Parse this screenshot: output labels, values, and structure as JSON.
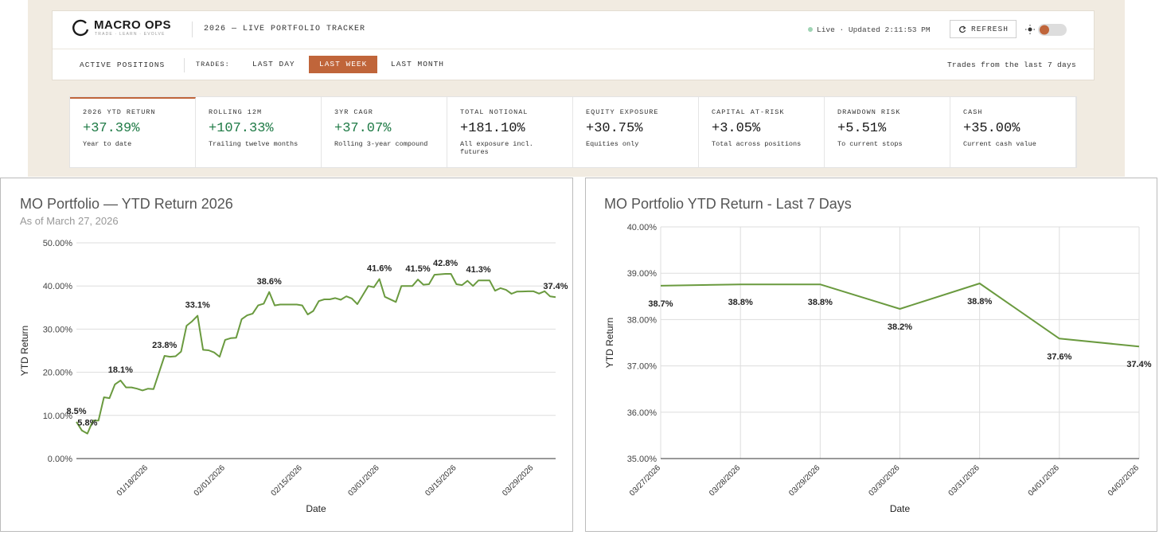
{
  "header": {
    "logo": "MACRO OPS",
    "tagline": "TRADE · LEARN · EVOLVE",
    "title": "2026 — LIVE PORTFOLIO TRACKER",
    "status": "Live · Updated 2:11:53 PM",
    "refresh": "REFRESH"
  },
  "nav": {
    "active_positions": "ACTIVE POSITIONS",
    "trades_label": "TRADES:",
    "tabs": [
      {
        "label": "LAST DAY"
      },
      {
        "label": "LAST WEEK",
        "active": true
      },
      {
        "label": "LAST MONTH"
      }
    ],
    "note": "Trades from the last 7 days"
  },
  "metrics": [
    {
      "label": "2026 YTD RETURN",
      "value": "+37.39%",
      "sub": "Year to date",
      "color": "#1e7a45"
    },
    {
      "label": "ROLLING 12M",
      "value": "+107.33%",
      "sub": "Trailing twelve months",
      "color": "#1e7a45"
    },
    {
      "label": "3YR CAGR",
      "value": "+37.07%",
      "sub": "Rolling 3-year compound",
      "color": "#1e7a45"
    },
    {
      "label": "TOTAL NOTIONAL",
      "value": "+181.10%",
      "sub": "All exposure incl. futures",
      "color": "#1a1a1a"
    },
    {
      "label": "EQUITY EXPOSURE",
      "value": "+30.75%",
      "sub": "Equities only",
      "color": "#1a1a1a"
    },
    {
      "label": "CAPITAL AT-RISK",
      "value": "+3.05%",
      "sub": "Total across positions",
      "color": "#1a1a1a"
    },
    {
      "label": "DRAWDOWN RISK",
      "value": "+5.51%",
      "sub": "To current stops",
      "color": "#1a1a1a"
    },
    {
      "label": "CASH",
      "value": "+35.00%",
      "sub": "Current cash value",
      "color": "#1a1a1a"
    }
  ],
  "chart_data": [
    {
      "type": "line",
      "title": "MO Portfolio — YTD Return 2026",
      "subtitle": "As of March 27, 2026",
      "x_label": "Date",
      "y_label": "YTD Return",
      "color": "#6a9a3f",
      "grid": true,
      "x": [
        "2026-01-05",
        "2026-01-06",
        "2026-01-07",
        "2026-01-08",
        "2026-01-09",
        "2026-01-10",
        "2026-01-11",
        "2026-01-12",
        "2026-01-13",
        "2026-01-14",
        "2026-01-15",
        "2026-01-16",
        "2026-01-17",
        "2026-01-18",
        "2026-01-19",
        "2026-01-21",
        "2026-01-22",
        "2026-01-23",
        "2026-01-24",
        "2026-01-25",
        "2026-01-26",
        "2026-01-27",
        "2026-01-28",
        "2026-01-29",
        "2026-01-30",
        "2026-01-31",
        "2026-02-01",
        "2026-02-02",
        "2026-02-03",
        "2026-02-04",
        "2026-02-05",
        "2026-02-06",
        "2026-02-07",
        "2026-02-08",
        "2026-02-09",
        "2026-02-10",
        "2026-02-11",
        "2026-02-12",
        "2026-02-14",
        "2026-02-15",
        "2026-02-16",
        "2026-02-17",
        "2026-02-18",
        "2026-02-19",
        "2026-02-20",
        "2026-02-21",
        "2026-02-22",
        "2026-02-23",
        "2026-02-24",
        "2026-02-25",
        "2026-02-26",
        "2026-02-27",
        "2026-02-28",
        "2026-03-01",
        "2026-03-02",
        "2026-03-04",
        "2026-03-05",
        "2026-03-07",
        "2026-03-08",
        "2026-03-09",
        "2026-03-10",
        "2026-03-11",
        "2026-03-13",
        "2026-03-14",
        "2026-03-15",
        "2026-03-16",
        "2026-03-17",
        "2026-03-18",
        "2026-03-19",
        "2026-03-21",
        "2026-03-22",
        "2026-03-23",
        "2026-03-24",
        "2026-03-25",
        "2026-03-26",
        "2026-03-27",
        "2026-03-28",
        "2026-03-29",
        "2026-03-30",
        "2026-03-31",
        "2026-04-01",
        "2026-04-02"
      ],
      "values": [
        8.5,
        6.5,
        5.8,
        8.8,
        8.8,
        14.2,
        14.0,
        17.2,
        18.1,
        16.5,
        16.5,
        16.2,
        15.8,
        16.2,
        16.1,
        23.8,
        23.6,
        23.7,
        24.8,
        30.8,
        31.8,
        33.1,
        25.2,
        25.1,
        24.6,
        23.6,
        27.5,
        27.9,
        28.0,
        32.3,
        33.2,
        33.6,
        35.5,
        35.9,
        38.6,
        35.5,
        35.7,
        35.7,
        35.7,
        35.5,
        33.4,
        34.2,
        36.5,
        36.9,
        36.9,
        37.2,
        36.8,
        37.6,
        37.1,
        35.8,
        37.9,
        40.0,
        39.7,
        41.6,
        37.5,
        36.3,
        40.0,
        40.0,
        41.5,
        40.3,
        40.4,
        42.6,
        42.8,
        42.8,
        40.4,
        40.2,
        41.2,
        40.0,
        41.3,
        41.3,
        38.9,
        39.5,
        39.1,
        38.2,
        38.7,
        38.73,
        38.76,
        38.76,
        38.23,
        38.78,
        37.59,
        37.42
      ],
      "value_labels": [
        "8.5%",
        null,
        "5.8%",
        null,
        null,
        null,
        null,
        null,
        "18.1%",
        null,
        null,
        null,
        null,
        null,
        null,
        "23.8%",
        null,
        null,
        null,
        null,
        null,
        "33.1%",
        null,
        null,
        null,
        null,
        null,
        null,
        null,
        null,
        null,
        null,
        null,
        null,
        "38.6%",
        null,
        null,
        null,
        null,
        null,
        null,
        null,
        null,
        null,
        null,
        null,
        null,
        null,
        null,
        null,
        null,
        null,
        null,
        "41.6%",
        null,
        null,
        null,
        null,
        "41.5%",
        null,
        null,
        null,
        "42.8%",
        null,
        null,
        null,
        null,
        null,
        "41.3%",
        null,
        null,
        null,
        null,
        null,
        null,
        null,
        null,
        null,
        null,
        null,
        null,
        "37.4%"
      ],
      "xlim": [
        "2026-01-05",
        "2026-04-02"
      ],
      "xticks": [
        {
          "value": "2026-01-18",
          "label": "01/18/2026"
        },
        {
          "value": "2026-02-01",
          "label": "02/01/2026"
        },
        {
          "value": "2026-02-15",
          "label": "02/15/2026"
        },
        {
          "value": "2026-03-01",
          "label": "03/01/2026"
        },
        {
          "value": "2026-03-15",
          "label": "03/15/2026"
        },
        {
          "value": "2026-03-29",
          "label": "03/29/2026"
        }
      ],
      "ylim": [
        0,
        50
      ],
      "yticks": [
        {
          "value": 0,
          "label": "0.00%"
        },
        {
          "value": 10,
          "label": "10.00%"
        },
        {
          "value": 20,
          "label": "20.00%"
        },
        {
          "value": 30,
          "label": "30.00%"
        },
        {
          "value": 40,
          "label": "40.00%"
        },
        {
          "value": 50,
          "label": "50.00%"
        }
      ]
    },
    {
      "type": "line",
      "title": "MO Portfolio YTD Return - Last 7 Days",
      "x_label": "Date",
      "y_label": "YTD Return",
      "color": "#6a9a3f",
      "grid": true,
      "categories": [
        "03/27/2026",
        "03/28/2026",
        "03/29/2026",
        "03/30/2026",
        "03/31/2026",
        "04/01/2026",
        "04/02/2026"
      ],
      "values": [
        38.73,
        38.76,
        38.76,
        38.23,
        38.78,
        37.59,
        37.42
      ],
      "value_labels": [
        "38.7%",
        "38.8%",
        "38.8%",
        "38.2%",
        "38.8%",
        "37.6%",
        "37.4%"
      ],
      "ylim": [
        35,
        40
      ],
      "yticks": [
        {
          "value": 35,
          "label": "35.00%"
        },
        {
          "value": 36,
          "label": "36.00%"
        },
        {
          "value": 37,
          "label": "37.00%"
        },
        {
          "value": 38,
          "label": "38.00%"
        },
        {
          "value": 39,
          "label": "39.00%"
        },
        {
          "value": 40,
          "label": "40.00%"
        }
      ]
    }
  ]
}
